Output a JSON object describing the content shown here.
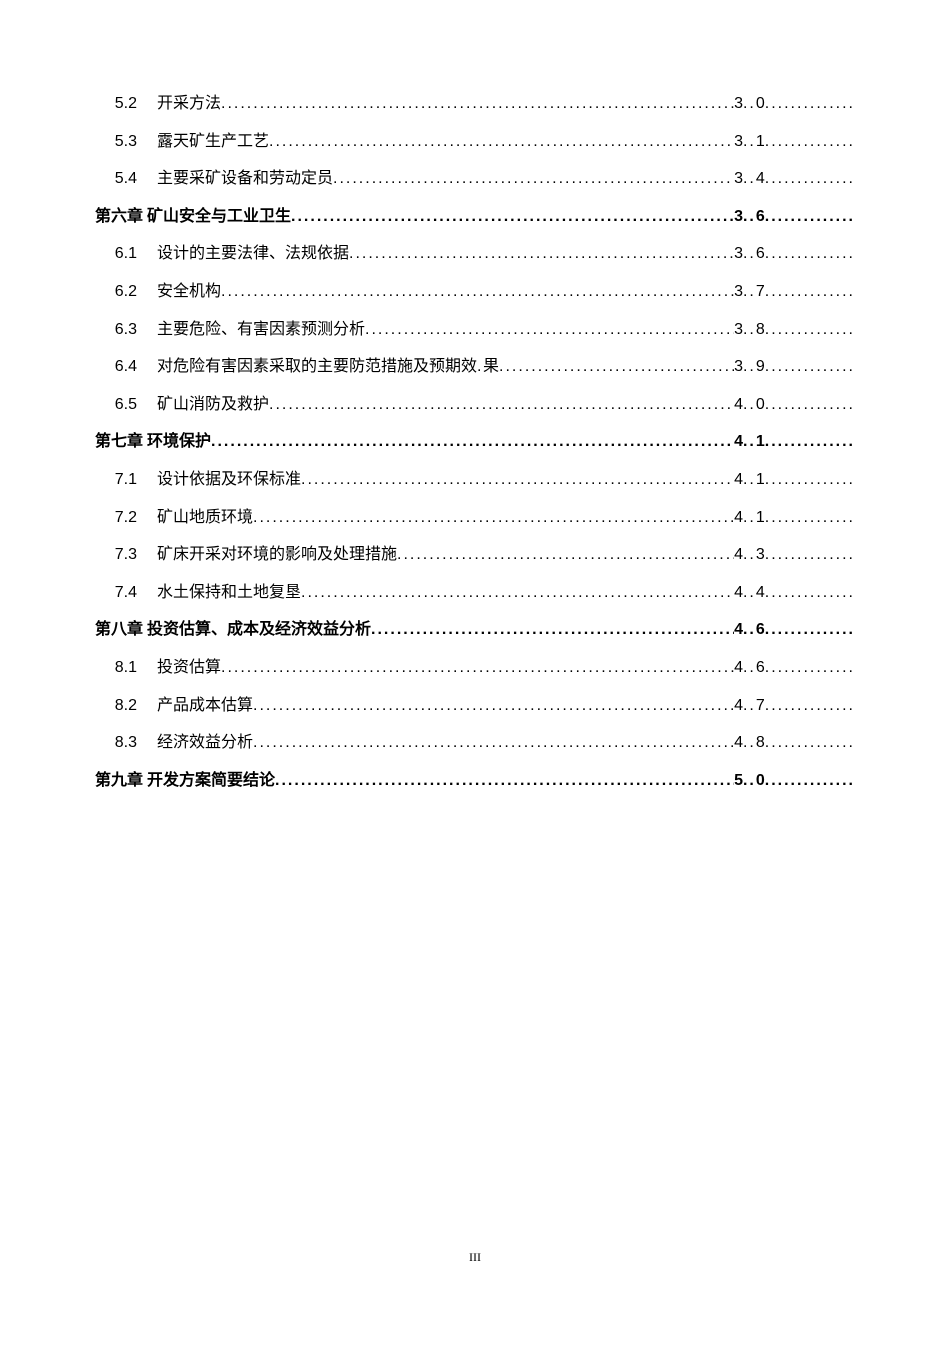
{
  "page_footer": "III",
  "entries": [
    {
      "num": "5.2",
      "title": "开采方法",
      "page_prefix": "3",
      "page_suffix": "0",
      "bold": false,
      "level": "sub"
    },
    {
      "num": "5.3",
      "title": "露天矿生产工艺",
      "page_prefix": "3",
      "page_suffix": "1",
      "bold": false,
      "level": "sub"
    },
    {
      "num": "5.4",
      "title": "主要采矿设备和劳动定员",
      "page_prefix": "3",
      "page_suffix": "4",
      "bold": false,
      "level": "sub"
    },
    {
      "num": "第六章",
      "title": "矿山安全与工业卫生",
      "page_prefix": "3",
      "page_suffix": "6",
      "bold": true,
      "level": "chapter"
    },
    {
      "num": "6.1",
      "title": "设计的主要法律、法规依据",
      "page_prefix": "3",
      "page_suffix": "6",
      "bold": false,
      "level": "sub"
    },
    {
      "num": "6.2",
      "title": "安全机构",
      "page_prefix": "3",
      "page_suffix": "7",
      "bold": false,
      "level": "sub"
    },
    {
      "num": "6.3",
      "title": "主要危险、有害因素预测分析",
      "page_prefix": "3",
      "page_suffix": "8",
      "bold": false,
      "level": "sub"
    },
    {
      "num": "6.4",
      "title": "对危险有害因素采取的主要防范措施及预期效",
      "title_suffix": "果",
      "page_prefix": "3",
      "page_suffix": "9",
      "bold": false,
      "level": "sub",
      "short_leader": true
    },
    {
      "num": "6.5",
      "title": "矿山消防及救护",
      "page_prefix": "4",
      "page_suffix": "0",
      "bold": false,
      "level": "sub"
    },
    {
      "num": "第七章",
      "title": "环境保护",
      "page_prefix": "4",
      "page_suffix": "1",
      "bold": true,
      "level": "chapter"
    },
    {
      "num": "7.1",
      "title": "设计依据及环保标准",
      "page_prefix": "4",
      "page_suffix": "1",
      "bold": false,
      "level": "sub"
    },
    {
      "num": "7.2",
      "title": "矿山地质环境",
      "page_prefix": "4",
      "page_suffix": "1",
      "bold": false,
      "level": "sub"
    },
    {
      "num": "7.3",
      "title": "矿床开采对环境的影响及处理措施",
      "page_prefix": "4",
      "page_suffix": "3",
      "bold": false,
      "level": "sub"
    },
    {
      "num": "7.4",
      "title": "水土保持和土地复垦",
      "page_prefix": "4",
      "page_suffix": "4",
      "bold": false,
      "level": "sub"
    },
    {
      "num": "第八章",
      "title": "投资估算、成本及经济效益分析",
      "page_prefix": "4",
      "page_suffix": "6",
      "bold": true,
      "level": "chapter"
    },
    {
      "num": "8.1",
      "title": "投资估算",
      "page_prefix": "4",
      "page_suffix": "6",
      "bold": false,
      "level": "sub"
    },
    {
      "num": "8.2",
      "title": "产品成本估算",
      "page_prefix": "4",
      "page_suffix": "7",
      "bold": false,
      "level": "sub"
    },
    {
      "num": "8.3",
      "title": "经济效益分析",
      "page_prefix": "4",
      "page_suffix": "8",
      "bold": false,
      "level": "sub"
    },
    {
      "num": "第九章",
      "title": "开发方案简要结论",
      "page_prefix": "5",
      "page_suffix": "0",
      "bold": true,
      "level": "chapter"
    }
  ]
}
